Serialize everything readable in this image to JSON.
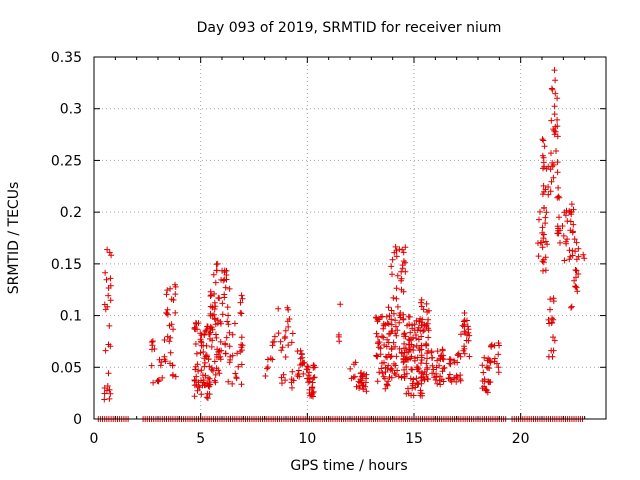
{
  "chart_data": {
    "type": "scatter",
    "title": "Day 093 of 2019, SRMTID for receiver nium",
    "xlabel": "GPS time / hours",
    "ylabel": "SRMTID / TECUs",
    "xlim": [
      0,
      24
    ],
    "ylim": [
      0,
      0.35
    ],
    "xticks": [
      0,
      5,
      10,
      15,
      20
    ],
    "xtick_labels": [
      "0",
      "5",
      "10",
      "15",
      "20"
    ],
    "yticks": [
      0,
      0.05,
      0.1,
      0.15,
      0.2,
      0.25,
      0.3,
      0.35
    ],
    "ytick_labels": [
      "0",
      "0.05",
      "0.1",
      "0.15",
      "0.2",
      "0.25",
      "0.3",
      "0.35"
    ],
    "grid": true,
    "marker": "+",
    "series": [
      {
        "name": "SRMTID",
        "color": "#e00000",
        "zero_ranges": [
          [
            0.2,
            1.6
          ],
          [
            2.3,
            9.2
          ],
          [
            9.3,
            13.4
          ],
          [
            13.5,
            19.3
          ],
          [
            19.6,
            22.9
          ]
        ],
        "clusters": [
          {
            "x0": 0.45,
            "x1": 0.8,
            "ymin": 0.018,
            "ymax": 0.165,
            "n": 26
          },
          {
            "x0": 2.7,
            "x1": 3.2,
            "ymin": 0.035,
            "ymax": 0.085,
            "n": 14
          },
          {
            "x0": 3.3,
            "x1": 3.85,
            "ymin": 0.03,
            "ymax": 0.13,
            "n": 30
          },
          {
            "x0": 4.7,
            "x1": 5.45,
            "ymin": 0.02,
            "ymax": 0.095,
            "n": 75
          },
          {
            "x0": 5.45,
            "x1": 6.3,
            "ymin": 0.035,
            "ymax": 0.152,
            "n": 80
          },
          {
            "x0": 6.3,
            "x1": 7.0,
            "ymin": 0.033,
            "ymax": 0.128,
            "n": 28
          },
          {
            "x0": 8.0,
            "x1": 8.6,
            "ymin": 0.038,
            "ymax": 0.095,
            "n": 10
          },
          {
            "x0": 8.6,
            "x1": 9.4,
            "ymin": 0.03,
            "ymax": 0.112,
            "n": 26
          },
          {
            "x0": 9.5,
            "x1": 9.95,
            "ymin": 0.04,
            "ymax": 0.068,
            "n": 16
          },
          {
            "x0": 9.95,
            "x1": 10.35,
            "ymin": 0.02,
            "ymax": 0.052,
            "n": 30
          },
          {
            "x0": 11.4,
            "x1": 11.6,
            "ymin": 0.075,
            "ymax": 0.115,
            "n": 4
          },
          {
            "x0": 12.0,
            "x1": 12.3,
            "ymin": 0.038,
            "ymax": 0.055,
            "n": 6
          },
          {
            "x0": 12.3,
            "x1": 12.8,
            "ymin": 0.025,
            "ymax": 0.045,
            "n": 22
          },
          {
            "x0": 13.2,
            "x1": 14.0,
            "ymin": 0.025,
            "ymax": 0.1,
            "n": 55
          },
          {
            "x0": 13.8,
            "x1": 14.6,
            "ymin": 0.04,
            "ymax": 0.168,
            "n": 70
          },
          {
            "x0": 14.5,
            "x1": 15.4,
            "ymin": 0.022,
            "ymax": 0.1,
            "n": 95
          },
          {
            "x0": 15.2,
            "x1": 15.7,
            "ymin": 0.035,
            "ymax": 0.118,
            "n": 45
          },
          {
            "x0": 15.8,
            "x1": 16.5,
            "ymin": 0.033,
            "ymax": 0.068,
            "n": 35
          },
          {
            "x0": 16.6,
            "x1": 17.2,
            "ymin": 0.035,
            "ymax": 0.065,
            "n": 24
          },
          {
            "x0": 17.2,
            "x1": 17.6,
            "ymin": 0.06,
            "ymax": 0.103,
            "n": 22
          },
          {
            "x0": 18.2,
            "x1": 18.6,
            "ymin": 0.025,
            "ymax": 0.06,
            "n": 24
          },
          {
            "x0": 18.6,
            "x1": 19.0,
            "ymin": 0.045,
            "ymax": 0.074,
            "n": 12
          },
          {
            "x0": 20.8,
            "x1": 21.1,
            "ymin": 0.15,
            "ymax": 0.21,
            "n": 10
          },
          {
            "x0": 21.0,
            "x1": 21.3,
            "ymin": 0.14,
            "ymax": 0.275,
            "n": 30
          },
          {
            "x0": 21.3,
            "x1": 21.6,
            "ymin": 0.06,
            "ymax": 0.12,
            "n": 16
          },
          {
            "x0": 21.4,
            "x1": 21.75,
            "ymin": 0.22,
            "ymax": 0.34,
            "n": 28
          },
          {
            "x0": 21.7,
            "x1": 22.0,
            "ymin": 0.17,
            "ymax": 0.225,
            "n": 14
          },
          {
            "x0": 22.0,
            "x1": 22.5,
            "ymin": 0.15,
            "ymax": 0.21,
            "n": 22
          },
          {
            "x0": 22.3,
            "x1": 22.7,
            "ymin": 0.1,
            "ymax": 0.19,
            "n": 18
          },
          {
            "x0": 22.7,
            "x1": 23.0,
            "ymin": 0.155,
            "ymax": 0.165,
            "n": 4
          }
        ]
      }
    ]
  }
}
